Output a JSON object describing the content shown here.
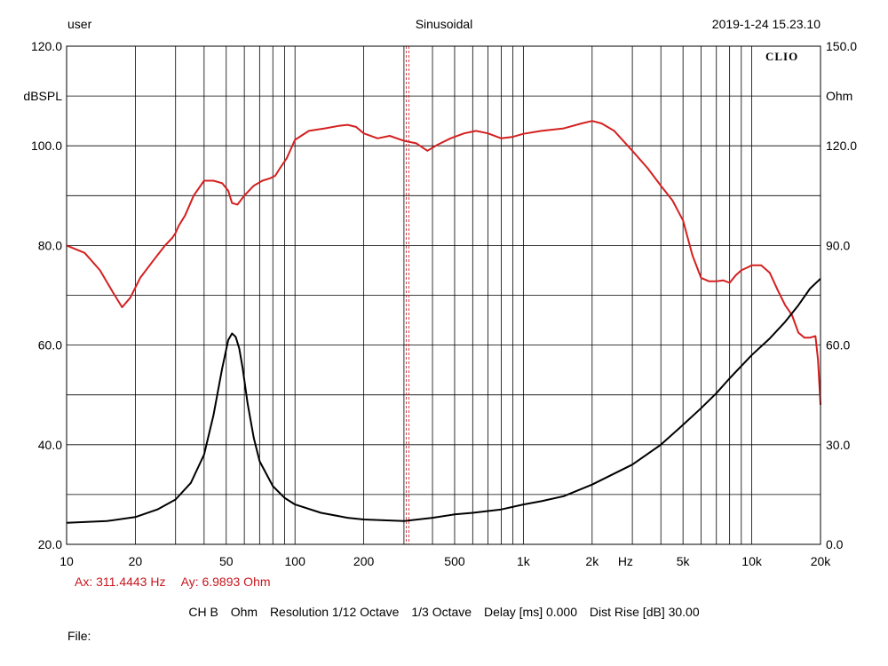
{
  "header": {
    "user": "user",
    "title": "Sinusoidal",
    "datetime": "2019-1-24 15.23.10"
  },
  "brand": "CLIO",
  "cursor": {
    "ax_text": "Ax: 311.4443 Hz",
    "ay_text": "Ay: 6.9893 Ohm",
    "ax_value_hz": 311.4443
  },
  "settings": {
    "channel": "CH B",
    "unit": "Ohm",
    "resolution": "Resolution 1/12 Octave",
    "smoothing": "1/3 Octave",
    "delay": "Delay [ms] 0.000",
    "dist_rise": "Dist Rise [dB] 30.00"
  },
  "file_label": "File:",
  "colors": {
    "spl": "#d42020",
    "impedance": "#000000",
    "cursor": "#c8161e"
  },
  "chart_data": {
    "type": "line",
    "title": "Sinusoidal",
    "xlabel": "Hz",
    "xscale": "log",
    "xlim": [
      10,
      20000
    ],
    "x_ticks": [
      {
        "value": 10,
        "label": "10"
      },
      {
        "value": 20,
        "label": "20"
      },
      {
        "value": 50,
        "label": "50"
      },
      {
        "value": 100,
        "label": "100"
      },
      {
        "value": 200,
        "label": "200"
      },
      {
        "value": 500,
        "label": "500"
      },
      {
        "value": 1000,
        "label": "1k"
      },
      {
        "value": 2000,
        "label": "2k"
      },
      {
        "value": 5000,
        "label": "5k"
      },
      {
        "value": 10000,
        "label": "10k"
      },
      {
        "value": 20000,
        "label": "20k"
      }
    ],
    "x_unit_label": "Hz",
    "x_unit_position_hz": 2800,
    "y_left": {
      "label": "dBSPL",
      "range": [
        20,
        120
      ],
      "ticks": [
        {
          "value": 120,
          "label": "120.0"
        },
        {
          "value": 100,
          "label": "100.0"
        },
        {
          "value": 80,
          "label": "80.0"
        },
        {
          "value": 60,
          "label": "60.0"
        },
        {
          "value": 40,
          "label": "40.0"
        },
        {
          "value": 20,
          "label": "20.0"
        }
      ]
    },
    "y_right": {
      "label": "Ohm",
      "range": [
        0,
        150
      ],
      "ticks": [
        {
          "value": 150,
          "label": "150.0"
        },
        {
          "value": 120,
          "label": "120.0"
        },
        {
          "value": 90,
          "label": "90.0"
        },
        {
          "value": 60,
          "label": "60.0"
        },
        {
          "value": 30,
          "label": "30.0"
        },
        {
          "value": 0,
          "label": "0.0"
        }
      ]
    },
    "grid": true,
    "series": [
      {
        "name": "SPL",
        "axis": "left",
        "color": "#d42020",
        "x": [
          10,
          12,
          14,
          16,
          17.5,
          19,
          21,
          24,
          27,
          29,
          30,
          31,
          33,
          36,
          40,
          44,
          48,
          51,
          53,
          56,
          60,
          66,
          72,
          78,
          82,
          86,
          92,
          100,
          115,
          135,
          155,
          170,
          185,
          200,
          230,
          260,
          300,
          340,
          380,
          420,
          480,
          550,
          620,
          700,
          800,
          900,
          1000,
          1200,
          1500,
          1800,
          2000,
          2200,
          2500,
          3000,
          3500,
          4000,
          4500,
          5000,
          5500,
          6000,
          6500,
          7000,
          7500,
          8000,
          8500,
          9000,
          9500,
          10000,
          10500,
          11000,
          12000,
          13000,
          14000,
          15000,
          16000,
          17000,
          18000,
          19000,
          19500,
          20000
        ],
        "y": [
          80.0,
          78.5,
          75.0,
          70.5,
          67.6,
          69.5,
          73.5,
          77.0,
          80.0,
          81.5,
          82.5,
          84.0,
          86.0,
          90.0,
          93.0,
          93.0,
          92.5,
          91.0,
          88.5,
          88.2,
          90.0,
          92.0,
          93.0,
          93.5,
          94.0,
          95.5,
          97.5,
          101.2,
          103.0,
          103.5,
          104.0,
          104.2,
          103.8,
          102.5,
          101.5,
          102.0,
          101.0,
          100.5,
          99.0,
          100.2,
          101.5,
          102.5,
          103.0,
          102.5,
          101.5,
          101.8,
          102.4,
          103.0,
          103.5,
          104.5,
          105.0,
          104.5,
          103.0,
          99.0,
          95.5,
          92.0,
          89.0,
          85.0,
          78.0,
          73.5,
          72.8,
          72.8,
          73.0,
          72.5,
          74.0,
          75.0,
          75.5,
          76.0,
          76.0,
          76.0,
          74.5,
          71.0,
          68.0,
          66.0,
          62.5,
          61.5,
          61.5,
          61.8,
          57.0,
          48.0
        ]
      },
      {
        "name": "Impedance",
        "axis": "right",
        "color": "#000000",
        "x": [
          10,
          15,
          20,
          25,
          30,
          35,
          40,
          44,
          48,
          51,
          53,
          55,
          57,
          59,
          62,
          66,
          70,
          80,
          90,
          100,
          130,
          170,
          200,
          300,
          400,
          500,
          600,
          800,
          1000,
          1200,
          1500,
          2000,
          3000,
          4000,
          5000,
          6000,
          7000,
          8000,
          10000,
          12000,
          14000,
          16000,
          18000,
          20000
        ],
        "y": [
          6.5,
          7.0,
          8.2,
          10.5,
          13.5,
          18.5,
          27.0,
          39.0,
          53.0,
          61.5,
          63.5,
          62.5,
          59.0,
          53.0,
          42.5,
          32.0,
          25.0,
          17.5,
          14.0,
          12.0,
          9.5,
          8.0,
          7.5,
          7.0,
          8.0,
          9.0,
          9.5,
          10.5,
          12.0,
          13.0,
          14.5,
          18.0,
          24.0,
          30.0,
          36.0,
          41.0,
          45.5,
          50.0,
          57.0,
          62.0,
          67.0,
          72.0,
          77.0,
          80.0
        ]
      }
    ],
    "cursor_x": 311.4443
  }
}
